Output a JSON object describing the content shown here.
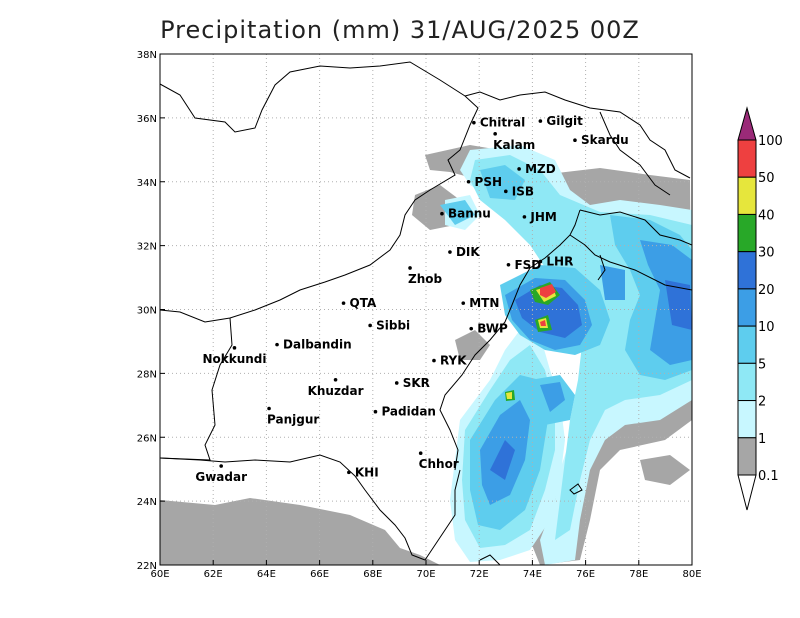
{
  "title": "Precipitation (mm) 31/AUG/2025 00Z",
  "axes": {
    "lon_labels": [
      "60E",
      "62E",
      "64E",
      "66E",
      "68E",
      "70E",
      "72E",
      "74E",
      "76E",
      "78E",
      "80E"
    ],
    "lat_labels": [
      "22N",
      "24N",
      "26N",
      "28N",
      "30N",
      "32N",
      "34N",
      "36N",
      "38N"
    ],
    "lon_range": [
      60,
      80
    ],
    "lat_range": [
      22,
      38
    ],
    "grid": true
  },
  "colorbar": {
    "labels": [
      "0.1",
      "1",
      "2",
      "5",
      "10",
      "20",
      "30",
      "40",
      "50",
      "100"
    ],
    "colors": [
      "#a6a6a6",
      "#c8f7ff",
      "#8fe8f5",
      "#5ecdee",
      "#3c9ee6",
      "#2f72d8",
      "#28a828",
      "#e6e63c",
      "#ee4040",
      "#9a2a78"
    ],
    "under_color": "#ffffff"
  },
  "cities": [
    {
      "name": "Chitral",
      "lon": 71.8,
      "lat": 35.85
    },
    {
      "name": "Gilgit",
      "lon": 74.3,
      "lat": 35.9
    },
    {
      "name": "Kalam",
      "lon": 72.6,
      "lat": 35.5
    },
    {
      "name": "Skardu",
      "lon": 75.6,
      "lat": 35.3
    },
    {
      "name": "MZD",
      "lon": 73.5,
      "lat": 34.4
    },
    {
      "name": "PSH",
      "lon": 71.6,
      "lat": 34.0
    },
    {
      "name": "ISB",
      "lon": 73.0,
      "lat": 33.7
    },
    {
      "name": "JHM",
      "lon": 73.7,
      "lat": 32.9
    },
    {
      "name": "Bannu",
      "lon": 70.6,
      "lat": 33.0
    },
    {
      "name": "DIK",
      "lon": 70.9,
      "lat": 31.8
    },
    {
      "name": "FSD",
      "lon": 73.1,
      "lat": 31.4
    },
    {
      "name": "LHR",
      "lon": 74.3,
      "lat": 31.5
    },
    {
      "name": "Zhob",
      "lon": 69.4,
      "lat": 31.3
    },
    {
      "name": "QTA",
      "lon": 66.9,
      "lat": 30.2
    },
    {
      "name": "MTN",
      "lon": 71.4,
      "lat": 30.2
    },
    {
      "name": "Sibbi",
      "lon": 67.9,
      "lat": 29.5
    },
    {
      "name": "BWP",
      "lon": 71.7,
      "lat": 29.4
    },
    {
      "name": "Nokkundi",
      "lon": 62.8,
      "lat": 28.8
    },
    {
      "name": "Dalbandin",
      "lon": 64.4,
      "lat": 28.9
    },
    {
      "name": "RYK",
      "lon": 70.3,
      "lat": 28.4
    },
    {
      "name": "Khuzdar",
      "lon": 66.6,
      "lat": 27.8
    },
    {
      "name": "SKR",
      "lon": 68.9,
      "lat": 27.7
    },
    {
      "name": "Panjgur",
      "lon": 64.1,
      "lat": 26.9
    },
    {
      "name": "Padidan",
      "lon": 68.1,
      "lat": 26.8
    },
    {
      "name": "Chhor",
      "lon": 69.8,
      "lat": 25.5
    },
    {
      "name": "KHI",
      "lon": 67.1,
      "lat": 24.9
    },
    {
      "name": "Gwadar",
      "lon": 62.3,
      "lat": 25.1
    }
  ]
}
